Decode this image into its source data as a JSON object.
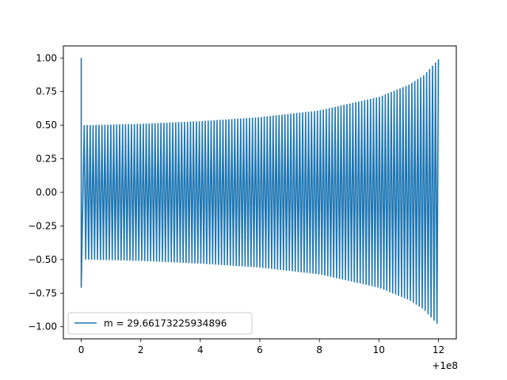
{
  "chart_data": {
    "type": "line",
    "title": "",
    "xlabel": "",
    "ylabel": "",
    "x_offset_label": "+1e8",
    "xlim": [
      -0.6,
      12.6
    ],
    "ylim": [
      -1.09,
      1.09
    ],
    "x_ticks": [
      0,
      2,
      4,
      6,
      8,
      10,
      12
    ],
    "x_tick_labels": [
      "0",
      "2",
      "4",
      "6",
      "8",
      "10",
      "12"
    ],
    "y_ticks": [
      1.0,
      0.75,
      0.5,
      0.25,
      0.0,
      -0.25,
      -0.5,
      -0.75,
      -1.0
    ],
    "y_tick_labels": [
      "1.00",
      "0.75",
      "0.50",
      "0.25",
      "0.00",
      "−0.25",
      "−0.50",
      "−0.75",
      "−1.00"
    ],
    "grid": false,
    "legend_position": "lower-left",
    "series": [
      {
        "name": "m = 29.66173225934896",
        "color": "#1f77b4",
        "description": "oscillation, amplitude growing from 0.5 to 1.0",
        "x_range": [
          0,
          12
        ],
        "initial_points": [
          [
            0,
            1.0
          ],
          [
            0,
            -0.71
          ]
        ],
        "envelope": [
          [
            0.1,
            0.5
          ],
          [
            2,
            0.51
          ],
          [
            4,
            0.53
          ],
          [
            6,
            0.56
          ],
          [
            8,
            0.61
          ],
          [
            10,
            0.71
          ],
          [
            11,
            0.8
          ],
          [
            11.5,
            0.87
          ],
          [
            12,
            0.99
          ]
        ],
        "approx_cycles": 120
      }
    ]
  }
}
